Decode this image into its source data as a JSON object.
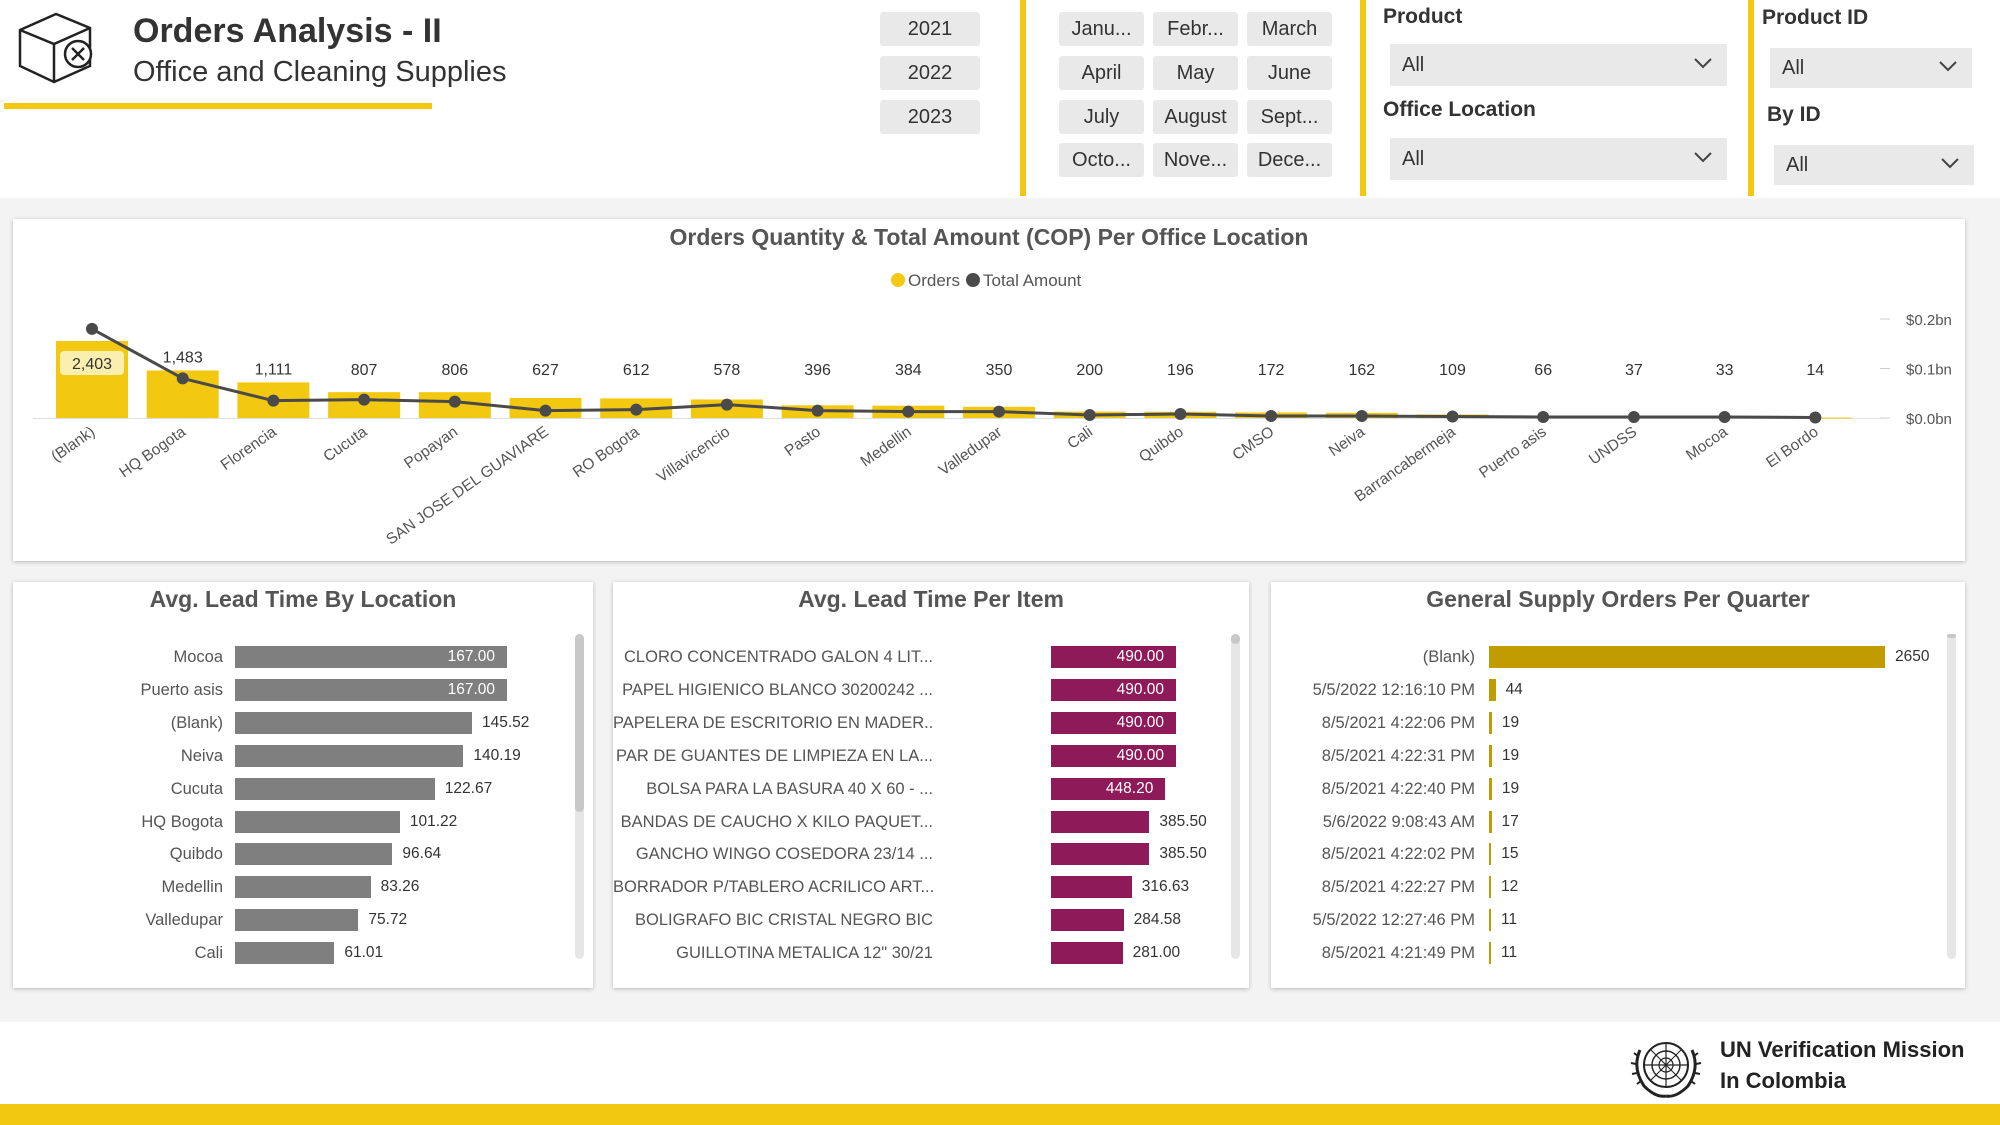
{
  "header": {
    "title": "Orders Analysis - II",
    "subtitle": "Office and Cleaning Supplies"
  },
  "years": [
    "2021",
    "2022",
    "2023"
  ],
  "months": [
    "Janu...",
    "Febr...",
    "March",
    "April",
    "May",
    "June",
    "July",
    "August",
    "Sept...",
    "Octo...",
    "Nove...",
    "Dece..."
  ],
  "filters": {
    "product_label": "Product",
    "product_value": "All",
    "office_label": "Office Location",
    "office_value": "All",
    "product_id_label": "Product ID",
    "product_id_value": "All",
    "by_id_label": "By ID",
    "by_id_value": "All"
  },
  "colors": {
    "accent": "#f2c811",
    "bar_gray": "#7f7f7f",
    "bar_magenta": "#8e1a5a",
    "bar_gold": "#c19c00",
    "line": "#4a4a4a"
  },
  "chart_data": [
    {
      "type": "bar+line",
      "title": "Orders Quantity & Total Amount (COP) Per Office Location",
      "legend": [
        "Orders",
        "Total Amount"
      ],
      "categories": [
        "(Blank)",
        "HQ Bogota",
        "Florencia",
        "Cucuta",
        "Popayan",
        "SAN JOSE DEL GUAVIARE",
        "RO Bogota",
        "Villavicencio",
        "Pasto",
        "Medellin",
        "Valledupar",
        "Cali",
        "Quibdo",
        "CMSO",
        "Neiva",
        "Barrancabermeja",
        "Puerto asis",
        "UNDSS",
        "Mocoa",
        "El Bordo"
      ],
      "orders": [
        2403,
        1483,
        1111,
        807,
        806,
        627,
        612,
        578,
        396,
        384,
        350,
        200,
        196,
        172,
        162,
        109,
        66,
        37,
        33,
        14
      ],
      "total_amount_bn": [
        0.18,
        0.08,
        0.035,
        0.037,
        0.033,
        0.015,
        0.017,
        0.027,
        0.015,
        0.013,
        0.013,
        0.006,
        0.008,
        0.004,
        0.004,
        0.003,
        0.002,
        0.002,
        0.002,
        0.001
      ],
      "y2_ticks": [
        "$0.2bn",
        "$0.1bn",
        "$0.0bn"
      ],
      "highlight_label": "2,403"
    },
    {
      "type": "bar",
      "title": "Avg. Lead Time By Location",
      "categories": [
        "Mocoa",
        "Puerto asis",
        "(Blank)",
        "Neiva",
        "Cucuta",
        "HQ Bogota",
        "Quibdo",
        "Medellin",
        "Valledupar",
        "Cali"
      ],
      "values": [
        167.0,
        167.0,
        145.52,
        140.19,
        122.67,
        101.22,
        96.64,
        83.26,
        75.72,
        61.01
      ],
      "labels": [
        "167.00",
        "167.00",
        "145.52",
        "140.19",
        "122.67",
        "101.22",
        "96.64",
        "83.26",
        "75.72",
        "61.01"
      ]
    },
    {
      "type": "bar",
      "title": "Avg. Lead Time Per Item",
      "categories": [
        "CLORO CONCENTRADO GALON 4 LIT...",
        "PAPEL HIGIENICO BLANCO 30200242 ...",
        "PAPELERA DE ESCRITORIO EN MADER...",
        "PAR DE GUANTES DE LIMPIEZA EN LA...",
        "BOLSA PARA LA BASURA 40 X 60 - ...",
        "BANDAS DE CAUCHO X KILO PAQUET...",
        "GANCHO WINGO COSEDORA 23/14 ...",
        "BORRADOR P/TABLERO ACRILICO ART...",
        "BOLIGRAFO BIC CRISTAL NEGRO BIC",
        "GUILLOTINA METALICA 12\" 30/21"
      ],
      "values": [
        490.0,
        490.0,
        490.0,
        490.0,
        448.2,
        385.5,
        385.5,
        316.63,
        284.58,
        281.0
      ],
      "labels": [
        "490.00",
        "490.00",
        "490.00",
        "490.00",
        "448.20",
        "385.50",
        "385.50",
        "316.63",
        "284.58",
        "281.00"
      ]
    },
    {
      "type": "bar",
      "title": "General Supply Orders Per Quarter",
      "categories": [
        "(Blank)",
        "5/5/2022 12:16:10 PM",
        "8/5/2021 4:22:06 PM",
        "8/5/2021 4:22:31 PM",
        "8/5/2021 4:22:40 PM",
        "5/6/2022 9:08:43 AM",
        "8/5/2021 4:22:02 PM",
        "8/5/2021 4:22:27 PM",
        "5/5/2022 12:27:46 PM",
        "8/5/2021 4:21:49 PM"
      ],
      "values": [
        2650,
        44,
        19,
        19,
        19,
        17,
        15,
        12,
        11,
        11
      ],
      "labels": [
        "2650",
        "44",
        "19",
        "19",
        "19",
        "17",
        "15",
        "12",
        "11",
        "11"
      ]
    }
  ],
  "footer": {
    "org_line1": "UN Verification Mission",
    "org_line2": "In Colombia"
  }
}
